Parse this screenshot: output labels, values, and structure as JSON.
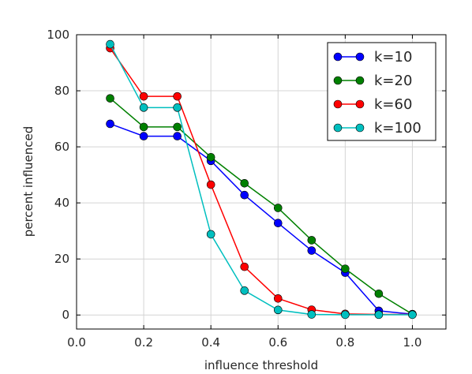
{
  "chart_data": {
    "type": "line",
    "xlabel": "influence threshold",
    "ylabel": "percent influenced",
    "xlim": [
      0.0,
      1.1
    ],
    "ylim": [
      -5,
      100
    ],
    "xticks": [
      "0.0",
      "0.2",
      "0.4",
      "0.6",
      "0.8",
      "1.0"
    ],
    "yticks": [
      "0",
      "20",
      "40",
      "60",
      "80",
      "100"
    ],
    "grid": true,
    "legend_position": "top-right",
    "x": [
      0.1,
      0.2,
      0.3,
      0.4,
      0.5,
      0.6,
      0.7,
      0.8,
      0.9,
      1.0
    ],
    "series": [
      {
        "name": "k=10",
        "color": "#0000ff",
        "values": [
          68.2,
          63.8,
          63.8,
          55.0,
          42.8,
          32.8,
          23.0,
          15.1,
          1.5,
          0.3
        ]
      },
      {
        "name": "k=20",
        "color": "#008000",
        "values": [
          77.3,
          67.1,
          67.1,
          56.3,
          47.0,
          38.2,
          26.7,
          16.5,
          7.6,
          0.3
        ]
      },
      {
        "name": "k=60",
        "color": "#ff0000",
        "values": [
          95.2,
          78.0,
          78.0,
          46.5,
          17.2,
          5.9,
          1.9,
          0.4,
          0.2,
          0.2
        ]
      },
      {
        "name": "k=100",
        "color": "#00bfbf",
        "values": [
          96.6,
          74.0,
          74.0,
          28.8,
          8.7,
          1.8,
          0.2,
          0.1,
          0.1,
          0.1
        ]
      }
    ]
  }
}
